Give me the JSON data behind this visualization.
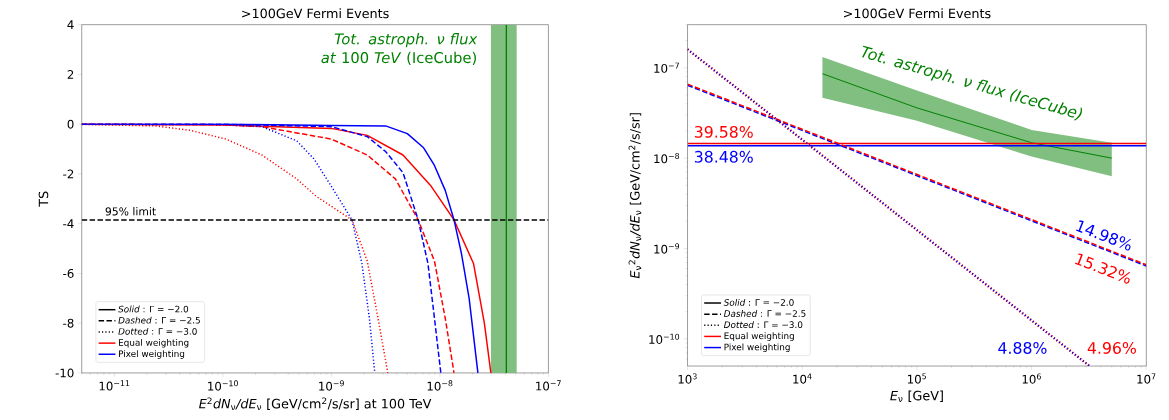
{
  "chart_data": [
    {
      "type": "line",
      "title": ">100GeV Fermi Events",
      "xlabel": "*E*$^{2}$*dN*$_{ν}$*/dE*$_{ν}$ [GeV/cm$^{2}$/s/sr] at 100 TeV",
      "ylabel": "TS",
      "log": "x",
      "xlim": [
        5e-12,
        1e-07
      ],
      "ylim": [
        -10,
        4
      ],
      "xticks": [
        {
          "value": 1e-11,
          "label": "10$^{−11}$"
        },
        {
          "value": 1e-10,
          "label": "10$^{−10}$"
        },
        {
          "value": 1e-09,
          "label": "10$^{−9}$"
        },
        {
          "value": 1e-08,
          "label": "10$^{−8}$"
        },
        {
          "value": 1e-07,
          "label": "10$^{−7}$"
        }
      ],
      "yticks": [
        -10,
        -8,
        -6,
        -4,
        -2,
        0,
        2,
        4
      ],
      "legend": "bottom left",
      "series": [
        {
          "color": "#ff0000",
          "line_style": "solid",
          "x": [
            5e-12,
            1e-10,
            1e-09,
            2.14e-09,
            4.57e-09,
            8.32e-09,
            1.35e-08,
            2.04e-08,
            2.57e-08,
            2.95e-08
          ],
          "values": [
            0,
            -0.03,
            -0.17,
            -0.45,
            -1.24,
            -2.5,
            -3.85,
            -5.6,
            -8,
            -10
          ]
        },
        {
          "color": "#0000ff",
          "line_style": "solid",
          "x": [
            5e-12,
            1e-10,
            1e-09,
            3.16e-09,
            5.01e-09,
            7.08e-09,
            8.91e-09,
            1.12e-08,
            1.35e-08,
            1.58e-08,
            1.86e-08,
            2.24e-08
          ],
          "values": [
            0,
            0,
            -0.05,
            -0.07,
            -0.38,
            -0.95,
            -1.66,
            -2.66,
            -3.85,
            -5.2,
            -7.0,
            -10
          ]
        },
        {
          "color": "#ff0000",
          "line_style": "dashed",
          "x": [
            5e-12,
            1e-10,
            2.29e-10,
            1e-09,
            2.14e-09,
            3.89e-09,
            6.31e-09,
            8.91e-09,
            1.12e-08,
            1.35e-08
          ],
          "values": [
            0,
            -0.02,
            -0.1,
            -0.6,
            -1.24,
            -2.2,
            -3.85,
            -5.5,
            -7.8,
            -10
          ]
        },
        {
          "color": "#0000ff",
          "line_style": "dashed",
          "x": [
            5e-12,
            1e-10,
            1e-09,
            2.14e-09,
            3.16e-09,
            4.57e-09,
            6.31e-09,
            7.76e-09,
            8.91e-09,
            1.02e-08
          ],
          "values": [
            0,
            0,
            -0.1,
            -0.5,
            -1.1,
            -1.95,
            -3.85,
            -5.6,
            -7.8,
            -10
          ]
        },
        {
          "color": "#ff0000",
          "line_style": "dotted",
          "x": [
            5e-12,
            2.4e-11,
            5.01e-11,
            1.07e-10,
            2.29e-10,
            4.79e-10,
            7.24e-10,
            1.55e-09,
            2.14e-09,
            2.69e-09,
            3.31e-09
          ],
          "values": [
            -0.01,
            -0.07,
            -0.25,
            -0.6,
            -1.24,
            -2.2,
            -2.9,
            -3.85,
            -5.5,
            -7.8,
            -10
          ]
        },
        {
          "color": "#0000ff",
          "line_style": "dotted",
          "x": [
            5e-12,
            1e-10,
            2.29e-10,
            4.79e-10,
            6.92e-10,
            1e-09,
            1.55e-09,
            1.91e-09,
            2.24e-09,
            2.51e-09
          ],
          "values": [
            0,
            -0.02,
            -0.1,
            -0.67,
            -1.4,
            -2.5,
            -3.85,
            -5.6,
            -7.8,
            -10
          ]
        },
        {
          "name": "*Solid* : Γ = −2.0",
          "color": "#000000",
          "line_style": "solid"
        },
        {
          "name": "*Dashed* : Γ = −2.5",
          "color": "#000000",
          "line_style": "dashed"
        },
        {
          "name": "*Dotted* : Γ = −3.0",
          "color": "#000000",
          "line_style": "dotted"
        },
        {
          "name": "Equal weighting",
          "color": "#ff0000",
          "line_style": "solid"
        },
        {
          "name": "Pixel weighting",
          "color": "#0000ff",
          "line_style": "solid"
        }
      ],
      "ref_lines": [
        {
          "axis": "y",
          "value": -3.85,
          "label": "95% limit",
          "color": "#000000",
          "line_style": "dashed"
        },
        {
          "axis": "x",
          "value": 4.1e-08,
          "label": "*Tot. astroph. ν flux at* 100 *TeV* (IceCube)",
          "color": "#008000",
          "line_style": "solid"
        }
      ],
      "bands": [
        {
          "axis": "x",
          "from": 2.95e-08,
          "to": 5.1e-08,
          "color": "#80bf80"
        }
      ]
    },
    {
      "type": "line",
      "title": ">100GeV Fermi Events",
      "xlabel": "*E*$_{ν}$ [GeV]",
      "ylabel": "*E*$_{ν}$$^{2}$*dN*$_{ν}$*/dE*$_{ν}$ [GeV/cm$^{2}$/s/sr]",
      "log": "xy",
      "xlim": [
        1000.0,
        10000000.0
      ],
      "ylim": [
        5e-11,
        3e-07
      ],
      "xticks": [
        {
          "value": 1000.0,
          "label": "10$^{3}$"
        },
        {
          "value": 10000.0,
          "label": "10$^{4}$"
        },
        {
          "value": 100000.0,
          "label": "10$^{5}$"
        },
        {
          "value": 1000000.0,
          "label": "10$^{6}$"
        },
        {
          "value": 10000000.0,
          "label": "10$^{7}$"
        }
      ],
      "yticks": [
        {
          "value": 1e-10,
          "label": "10$^{−10}$"
        },
        {
          "value": 1e-09,
          "label": "10$^{−9}$"
        },
        {
          "value": 1e-08,
          "label": "10$^{−8}$"
        },
        {
          "value": 1e-07,
          "label": "10$^{−7}$"
        }
      ],
      "legend": "bottom left",
      "series": [
        {
          "name": "Tot. astroph. ν flux (IceCube)",
          "color": "#008000",
          "line_style": "solid",
          "x": [
            15000.0,
            100000.0,
            1000000.0,
            5000000.0
          ],
          "values": [
            8.6e-08,
            3.6e-08,
            1.48e-08,
            1e-08
          ],
          "lower": [
            4.65e-08,
            2.6e-08,
            1.04e-08,
            6.3e-09
          ],
          "upper": [
            1.32e-07,
            5.6e-08,
            2.05e-08,
            1.48e-08
          ]
        },
        {
          "name": "38.48%",
          "color": "#0000ff",
          "line_style": "solid",
          "x": [
            1000.0,
            10000000.0
          ],
          "values": [
            1.37e-08,
            1.37e-08
          ]
        },
        {
          "name": "39.58%",
          "color": "#ff0000",
          "line_style": "solid",
          "x": [
            1000.0,
            10000000.0
          ],
          "values": [
            1.45e-08,
            1.45e-08
          ]
        },
        {
          "name": "14.98%",
          "color": "#0000ff",
          "line_style": "dashed",
          "x": [
            1000.0,
            10000000.0
          ],
          "values": [
            6.4e-08,
            6.4e-10
          ]
        },
        {
          "name": "15.32%",
          "color": "#ff0000",
          "line_style": "dashed",
          "x": [
            1000.0,
            10000000.0
          ],
          "values": [
            6.6e-08,
            6.6e-10
          ]
        },
        {
          "name": "4.96%",
          "color": "#ff0000",
          "line_style": "dotted",
          "x": [
            1000.0,
            3200000.0
          ],
          "values": [
            1.6e-07,
            5e-11
          ]
        },
        {
          "name": "4.88%",
          "color": "#0000ff",
          "line_style": "dotted",
          "x": [
            1000.0,
            3200000.0
          ],
          "values": [
            1.6e-07,
            5e-11
          ]
        },
        {
          "name": "*Solid* : Γ = −2.0",
          "color": "#000000",
          "line_style": "solid"
        },
        {
          "name": "*Dashed* : Γ = −2.5",
          "color": "#000000",
          "line_style": "dashed"
        },
        {
          "name": "*Dotted* : Γ = −3.0",
          "color": "#000000",
          "line_style": "dotted"
        },
        {
          "name": "Equal weighting",
          "color": "#ff0000",
          "line_style": "solid"
        },
        {
          "name": "Pixel weighting",
          "color": "#0000ff",
          "line_style": "solid"
        }
      ]
    }
  ]
}
